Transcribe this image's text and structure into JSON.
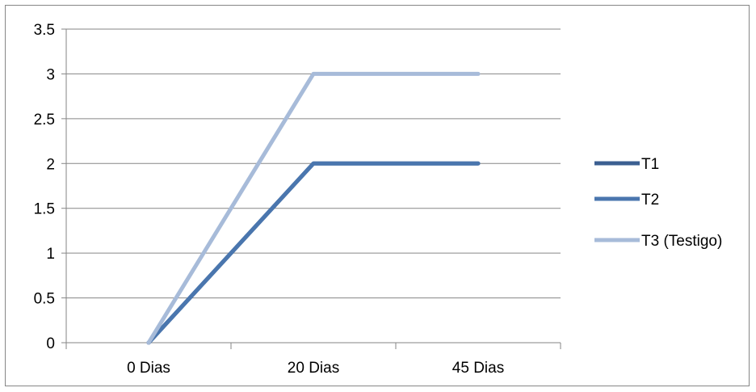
{
  "chart_data": {
    "type": "line",
    "title": "",
    "xlabel": "",
    "ylabel": "",
    "categories": [
      "0 Dias",
      "20 Dias",
      "45 Dias"
    ],
    "ylim": [
      0,
      3.5
    ],
    "y_ticks": [
      "0",
      "0.5",
      "1",
      "1.5",
      "2",
      "2.5",
      "3",
      "3.5"
    ],
    "grid": true,
    "legend_position": "right",
    "series": [
      {
        "name": "T1",
        "values": [
          0,
          2,
          2
        ],
        "color": "#3B5F91"
      },
      {
        "name": "T2",
        "values": [
          0,
          2,
          2
        ],
        "color": "#4A76AE"
      },
      {
        "name": "T3 (Testigo)",
        "values": [
          0,
          3,
          3
        ],
        "color": "#A7BBD9"
      }
    ]
  }
}
